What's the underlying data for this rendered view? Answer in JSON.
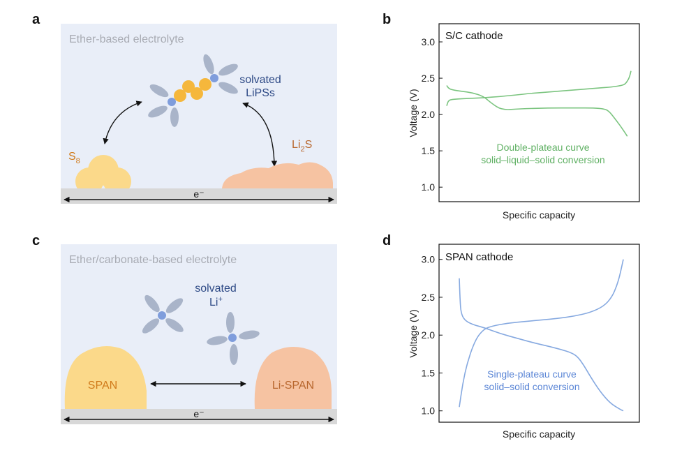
{
  "panels": {
    "a": {
      "letter": "a",
      "title": "Ether-based electrolyte",
      "solvated_line1": "solvated",
      "solvated_line2": "LiPSs",
      "s8_base": "S",
      "s8_sub": "8",
      "li2s_base": "Li",
      "li2s_sub": "2",
      "li2s_tail": "S",
      "electron": "e⁻"
    },
    "c": {
      "letter": "c",
      "title": "Ether/carbonate-based electrolyte",
      "solvated_line1": "solvated",
      "solvated_line2_base": "Li",
      "solvated_line2_sup": "+",
      "span_label": "SPAN",
      "lispan_label": "Li-SPAN",
      "electron": "e⁻"
    }
  },
  "colors": {
    "panel_bg": "#e9eef8",
    "floor": "#d8d8d8",
    "sulfur_yellow": "#fbd98a",
    "polysulfide_orange": "#f5b73c",
    "li2s_peach": "#f6c3a2",
    "li_blue": "#7f9ddc",
    "solvent_gray": "#a9b4c9",
    "green_curve": "#7bc47f",
    "blue_curve": "#86a9e0",
    "text_orange": "#d07a1a",
    "text_brown": "#b8672e",
    "text_blue": "#2e4a86"
  },
  "chart_data": [
    {
      "panel": "b",
      "type": "line",
      "letter": "b",
      "inset_title": "S/C cathode",
      "xlabel": "Specific capacity",
      "ylabel": "Voltage (V)",
      "ylim": [
        0.8,
        3.25
      ],
      "yticks": [
        "1.0",
        "1.5",
        "2.0",
        "2.5",
        "3.0"
      ],
      "ytick_values": [
        1.0,
        1.5,
        2.0,
        2.5,
        3.0
      ],
      "xlim": [
        0,
        1
      ],
      "annotation_line1": "Double-plateau curve",
      "annotation_line2": "solid–liquid–solid conversion",
      "color": "#7bc47f",
      "series": [
        {
          "x": [
            0.0,
            0.01,
            0.04,
            0.1,
            0.2,
            0.3,
            0.38,
            0.45,
            0.55,
            0.7,
            0.8,
            0.9,
            0.95,
            0.97,
            0.99,
            1.0
          ],
          "y": [
            2.12,
            2.2,
            2.21,
            2.22,
            2.23,
            2.25,
            2.27,
            2.29,
            2.31,
            2.34,
            2.36,
            2.38,
            2.4,
            2.42,
            2.5,
            2.6
          ]
        },
        {
          "x": [
            0.0,
            0.01,
            0.03,
            0.08,
            0.14,
            0.2,
            0.24,
            0.3,
            0.4,
            0.55,
            0.7,
            0.8,
            0.85,
            0.88,
            0.92,
            0.96,
            0.98
          ],
          "y": [
            2.4,
            2.36,
            2.34,
            2.32,
            2.3,
            2.25,
            2.16,
            2.06,
            2.08,
            2.09,
            2.09,
            2.09,
            2.08,
            2.05,
            1.92,
            1.78,
            1.7
          ]
        }
      ]
    },
    {
      "panel": "d",
      "type": "line",
      "letter": "d",
      "inset_title": "SPAN cathode",
      "xlabel": "Specific capacity",
      "ylabel": "Voltage (V)",
      "ylim": [
        0.85,
        3.2
      ],
      "yticks": [
        "1.0",
        "1.5",
        "2.0",
        "2.5",
        "3.0"
      ],
      "ytick_values": [
        1.0,
        1.5,
        2.0,
        2.5,
        3.0
      ],
      "xlim": [
        0,
        1
      ],
      "annotation_line1": "Single-plateau curve",
      "annotation_line2": "solid–solid conversion",
      "color": "#86a9e0",
      "series": [
        {
          "x": [
            0.0,
            0.005,
            0.01,
            0.03,
            0.08,
            0.15,
            0.25,
            0.35,
            0.45,
            0.55,
            0.62,
            0.68,
            0.72,
            0.76,
            0.8,
            0.86,
            0.92,
            0.98,
            1.0
          ],
          "y": [
            2.75,
            2.45,
            2.3,
            2.2,
            2.14,
            2.1,
            2.02,
            1.96,
            1.9,
            1.85,
            1.81,
            1.77,
            1.72,
            1.6,
            1.45,
            1.25,
            1.1,
            1.02,
            1.0
          ]
        },
        {
          "x": [
            0.0,
            0.02,
            0.05,
            0.1,
            0.15,
            0.2,
            0.3,
            0.4,
            0.5,
            0.6,
            0.7,
            0.8,
            0.88,
            0.93,
            0.96,
            0.98,
            1.0
          ],
          "y": [
            1.05,
            1.35,
            1.65,
            1.95,
            2.08,
            2.12,
            2.16,
            2.18,
            2.2,
            2.22,
            2.25,
            2.3,
            2.38,
            2.5,
            2.65,
            2.8,
            3.0
          ]
        }
      ]
    }
  ]
}
